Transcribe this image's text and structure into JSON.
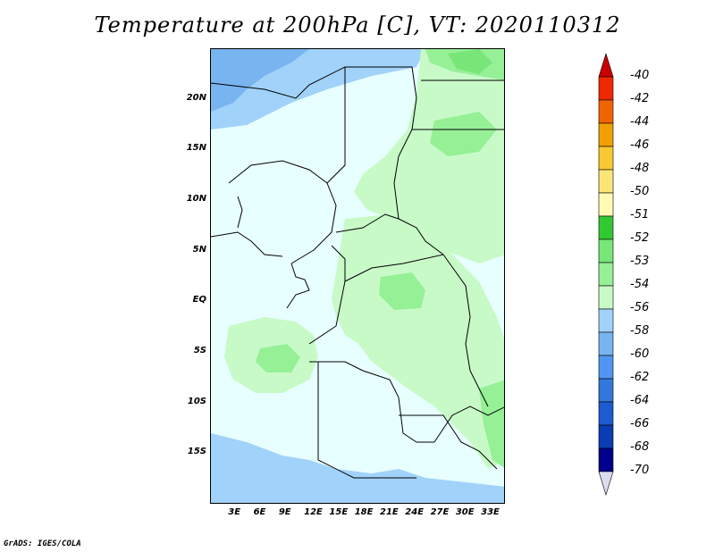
{
  "title": "Temperature at 200hPa [C], VT: 2020110312",
  "credit": "GrADS: IGES/COLA",
  "map": {
    "lat_labels": [
      "20N",
      "15N",
      "10N",
      "5N",
      "EQ",
      "5S",
      "10S",
      "15S"
    ],
    "lon_labels": [
      "3E",
      "6E",
      "9E",
      "12E",
      "15E",
      "18E",
      "21E",
      "24E",
      "27E",
      "30E",
      "33E"
    ],
    "lat_values": [
      20,
      15,
      10,
      5,
      0,
      -5,
      -10,
      -15
    ],
    "lon_values": [
      3,
      6,
      9,
      12,
      15,
      18,
      21,
      24,
      27,
      30,
      33
    ],
    "lon_range": [
      0,
      35
    ],
    "lat_range": [
      -20,
      25
    ],
    "colors": {
      "background": "#e8ffff",
      "level_-54": "#c8fac8",
      "level_-53": "#96f096",
      "level_-52": "#78e678",
      "level_-56": "#a0d2fa",
      "level_-58": "#78b4f0"
    }
  },
  "colorbar": {
    "labels": [
      "-40",
      "-42",
      "-44",
      "-46",
      "-48",
      "-50",
      "-51",
      "-52",
      "-53",
      "-54",
      "-56",
      "-58",
      "-60",
      "-62",
      "-64",
      "-66",
      "-68",
      "-70"
    ],
    "colors": [
      "#c80000",
      "#f02800",
      "#f06400",
      "#f0a000",
      "#fac832",
      "#fae678",
      "#fffab4",
      "#32c832",
      "#78e678",
      "#96f096",
      "#c8fac8",
      "#a0d2fa",
      "#78b4f0",
      "#5096f0",
      "#3278dc",
      "#1e5ad2",
      "#0a3cb4",
      "#00008c",
      "#dcdcf0"
    ]
  }
}
